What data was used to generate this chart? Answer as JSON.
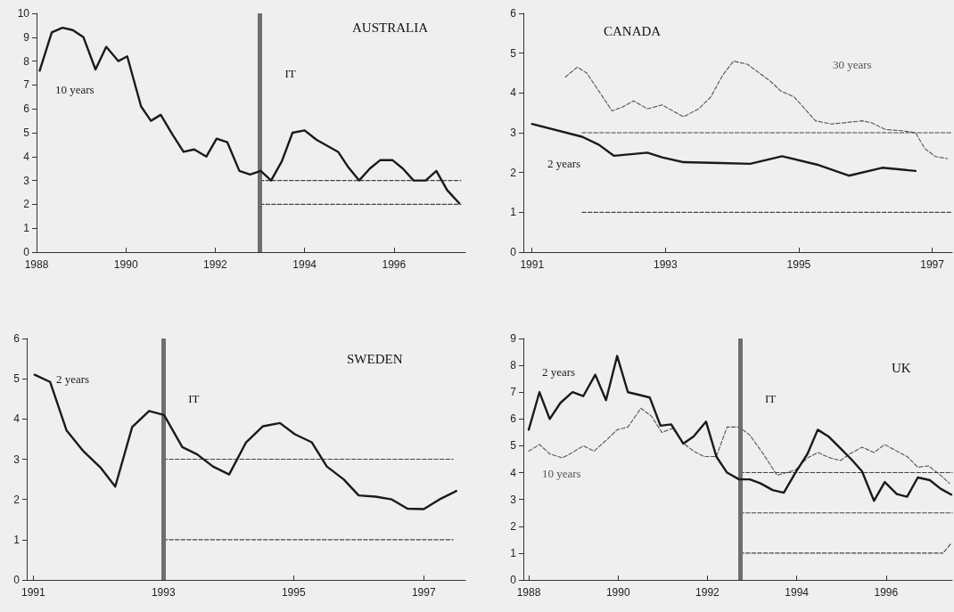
{
  "chart_data": [
    {
      "type": "line",
      "title": "AUSTRALIA",
      "xlim": [
        1988,
        1997.6
      ],
      "xticks": [
        1988,
        1990,
        1992,
        1994,
        1996
      ],
      "ylim": [
        0,
        10
      ],
      "yticks": [
        0,
        1,
        2,
        3,
        4,
        5,
        6,
        7,
        8,
        9,
        10
      ],
      "grid": false,
      "series": [
        {
          "name": "10 years",
          "color": "#1a1a1a",
          "line_style": "solid",
          "x": [
            1988.07,
            1988.34,
            1988.58,
            1988.81,
            1989.05,
            1989.32,
            1989.56,
            1989.83,
            1990.03,
            1990.34,
            1990.56,
            1990.78,
            1991.05,
            1991.29,
            1991.53,
            1991.8,
            1992.03,
            1992.27,
            1992.54,
            1992.78,
            1993.02,
            1993.25,
            1993.49,
            1993.73,
            1994.0,
            1994.27,
            1994.51,
            1994.75,
            1994.98,
            1995.22,
            1995.46,
            1995.69,
            1995.97,
            1996.2,
            1996.44,
            1996.71,
            1996.95,
            1997.19,
            1997.46
          ],
          "values": [
            7.6,
            9.2,
            9.4,
            9.3,
            9.0,
            7.65,
            8.6,
            8.0,
            8.2,
            6.1,
            5.5,
            5.75,
            4.9,
            4.2,
            4.3,
            4.0,
            4.75,
            4.6,
            3.4,
            3.25,
            3.4,
            3.0,
            3.8,
            5.0,
            5.1,
            4.7,
            4.45,
            4.2,
            3.55,
            3.0,
            3.5,
            3.85,
            3.85,
            3.5,
            3.0,
            3.0,
            3.4,
            2.6,
            2.05
          ]
        },
        {
          "color": "#444444",
          "line_style": "dashed",
          "x": [
            1993,
            1997.5
          ],
          "values": [
            3,
            3
          ]
        },
        {
          "color": "#444444",
          "line_style": "dashed",
          "x": [
            1993,
            1997.5
          ],
          "values": [
            2,
            2
          ]
        }
      ],
      "ref_lines": [
        {
          "axis": "x",
          "value": 1993,
          "label": "IT",
          "color": "#6e6e6e"
        }
      ]
    },
    {
      "type": "line",
      "title": "CANADA",
      "xlim": [
        1990.87,
        1997.3
      ],
      "xticks": [
        1991,
        1993,
        1995,
        1997
      ],
      "ylim": [
        0,
        6
      ],
      "yticks": [
        0,
        1,
        2,
        3,
        4,
        5,
        6
      ],
      "grid": false,
      "series": [
        {
          "name": "2 years",
          "color": "#1a1a1a",
          "line_style": "solid",
          "x": [
            1991.0,
            1991.75,
            1992.0,
            1992.23,
            1992.73,
            1992.95,
            1993.27,
            1993.82,
            1994.27,
            1994.75,
            1995.27,
            1995.75,
            1996.25,
            1996.75
          ],
          "values": [
            3.22,
            2.9,
            2.7,
            2.42,
            2.5,
            2.38,
            2.26,
            2.24,
            2.22,
            2.41,
            2.2,
            1.92,
            2.12,
            2.04
          ]
        },
        {
          "name": "30 years",
          "color": "#555555",
          "line_style": "dashed",
          "x": [
            1991.5,
            1991.68,
            1991.82,
            1992.2,
            1992.36,
            1992.52,
            1992.73,
            1992.95,
            1993.27,
            1993.5,
            1993.68,
            1993.86,
            1994.02,
            1994.23,
            1994.57,
            1994.73,
            1994.93,
            1995.25,
            1995.48,
            1995.68,
            1995.95,
            1996.09,
            1996.3,
            1996.55,
            1996.75,
            1996.89,
            1997.05,
            1997.23
          ],
          "values": [
            4.4,
            4.65,
            4.5,
            3.55,
            3.65,
            3.8,
            3.6,
            3.7,
            3.4,
            3.6,
            3.9,
            4.45,
            4.8,
            4.72,
            4.3,
            4.05,
            3.9,
            3.3,
            3.22,
            3.25,
            3.3,
            3.25,
            3.08,
            3.05,
            3.0,
            2.6,
            2.4,
            2.35
          ]
        },
        {
          "color": "#444444",
          "line_style": "dashed",
          "x": [
            1991.75,
            1997.3
          ],
          "values": [
            3,
            3
          ]
        },
        {
          "color": "#444444",
          "line_style": "dashed",
          "x": [
            1991.75,
            1997.3
          ],
          "values": [
            1,
            1
          ]
        }
      ]
    },
    {
      "type": "line",
      "title": "SWEDEN",
      "xlim": [
        1990.9,
        1997.64
      ],
      "xticks": [
        1991,
        1993,
        1995,
        1997
      ],
      "ylim": [
        0,
        6
      ],
      "yticks": [
        0,
        1,
        2,
        3,
        4,
        5,
        6
      ],
      "grid": false,
      "series": [
        {
          "name": "2 years",
          "color": "#1a1a1a",
          "line_style": "solid",
          "x": [
            1991.02,
            1991.26,
            1991.51,
            1991.77,
            1992.03,
            1992.26,
            1992.52,
            1992.78,
            1993.01,
            1993.29,
            1993.52,
            1993.76,
            1994.01,
            1994.27,
            1994.53,
            1994.79,
            1995.02,
            1995.28,
            1995.51,
            1995.77,
            1996.0,
            1996.26,
            1996.51,
            1996.75,
            1997.0,
            1997.24,
            1997.5
          ],
          "values": [
            5.1,
            4.92,
            3.72,
            3.2,
            2.8,
            2.32,
            3.8,
            4.2,
            4.1,
            3.3,
            3.12,
            2.82,
            2.62,
            3.42,
            3.82,
            3.9,
            3.62,
            3.42,
            2.82,
            2.5,
            2.1,
            2.07,
            2.0,
            1.77,
            1.76,
            2.0,
            2.21
          ]
        },
        {
          "color": "#444444",
          "line_style": "dashed",
          "x": [
            1993,
            1997.45
          ],
          "values": [
            3,
            3
          ]
        },
        {
          "color": "#444444",
          "line_style": "dashed",
          "x": [
            1993,
            1997.45
          ],
          "values": [
            1,
            1
          ]
        }
      ],
      "ref_lines": [
        {
          "axis": "x",
          "value": 1993,
          "label": "IT",
          "color": "#6e6e6e"
        }
      ]
    },
    {
      "type": "line",
      "title": "UK",
      "xlim": [
        1987.88,
        1997.48
      ],
      "xticks": [
        1988,
        1990,
        1992,
        1994,
        1996
      ],
      "ylim": [
        0,
        9
      ],
      "yticks": [
        0,
        1,
        2,
        3,
        4,
        5,
        6,
        7,
        8,
        9
      ],
      "grid": false,
      "series": [
        {
          "name": "2 years",
          "color": "#1a1a1a",
          "line_style": "solid",
          "x": [
            1988.0,
            1988.24,
            1988.47,
            1988.71,
            1988.98,
            1989.22,
            1989.49,
            1989.73,
            1989.98,
            1990.22,
            1990.47,
            1990.71,
            1990.95,
            1991.19,
            1991.46,
            1991.69,
            1991.97,
            1992.2,
            1992.44,
            1992.71,
            1992.95,
            1993.19,
            1993.46,
            1993.71,
            1993.97,
            1994.24,
            1994.47,
            1994.71,
            1994.98,
            1995.22,
            1995.46,
            1995.73,
            1995.97,
            1996.24,
            1996.47,
            1996.71,
            1996.98,
            1997.22,
            1997.46
          ],
          "values": [
            5.6,
            7.0,
            6.0,
            6.6,
            7.0,
            6.85,
            7.65,
            6.7,
            8.35,
            7.0,
            6.9,
            6.8,
            5.75,
            5.8,
            5.08,
            5.35,
            5.9,
            4.6,
            4.0,
            3.75,
            3.75,
            3.6,
            3.35,
            3.25,
            4.0,
            4.7,
            5.6,
            5.35,
            4.9,
            4.5,
            4.05,
            2.95,
            3.65,
            3.2,
            3.1,
            3.82,
            3.72,
            3.4,
            3.18
          ]
        },
        {
          "name": "10 years",
          "color": "#555555",
          "line_style": "dashed",
          "x": [
            1988.0,
            1988.24,
            1988.47,
            1988.75,
            1988.98,
            1989.22,
            1989.46,
            1989.73,
            1989.98,
            1990.22,
            1990.51,
            1990.75,
            1990.98,
            1991.22,
            1991.46,
            1991.69,
            1991.93,
            1992.2,
            1992.44,
            1992.71,
            1992.95,
            1993.25,
            1993.56,
            1993.97,
            1994.24,
            1994.47,
            1994.75,
            1994.98,
            1995.19,
            1995.46,
            1995.73,
            1995.97,
            1996.24,
            1996.47,
            1996.71,
            1996.95,
            1997.22,
            1997.42
          ],
          "values": [
            4.8,
            5.05,
            4.7,
            4.55,
            4.75,
            5.0,
            4.8,
            5.2,
            5.6,
            5.7,
            6.4,
            6.1,
            5.5,
            5.65,
            5.1,
            4.8,
            4.6,
            4.6,
            5.7,
            5.7,
            5.4,
            4.7,
            3.9,
            4.1,
            4.55,
            4.75,
            4.55,
            4.45,
            4.7,
            4.95,
            4.75,
            5.05,
            4.8,
            4.6,
            4.2,
            4.25,
            3.9,
            3.6
          ]
        },
        {
          "color": "#444444",
          "line_style": "dashed",
          "x": [
            1992.73,
            1997.48
          ],
          "values": [
            4,
            4
          ]
        },
        {
          "color": "#444444",
          "line_style": "dashed",
          "x": [
            1992.73,
            1997.48
          ],
          "values": [
            2.5,
            2.5
          ]
        },
        {
          "color": "#444444",
          "line_style": "dashed",
          "x": [
            1992.73,
            1997.27
          ],
          "values": [
            1,
            1
          ]
        },
        {
          "color": "#444444",
          "line_style": "dashed",
          "x": [
            1997.3,
            1997.45
          ],
          "values": [
            1.05,
            1.35
          ]
        }
      ],
      "ref_lines": [
        {
          "axis": "x",
          "value": 1992.73,
          "label": "IT",
          "color": "#6e6e6e"
        }
      ]
    }
  ]
}
